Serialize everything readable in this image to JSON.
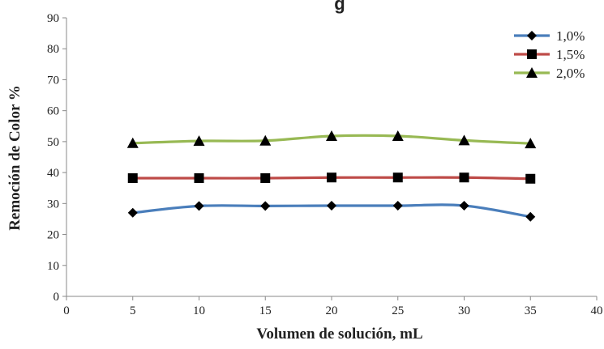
{
  "chart_data": {
    "type": "line",
    "title_partial": "g",
    "xlabel": "Volumen de solución, mL",
    "ylabel": "Remoción de Color %",
    "xlim": [
      0,
      40
    ],
    "ylim": [
      0,
      90
    ],
    "xticks": [
      0,
      5,
      10,
      15,
      20,
      25,
      30,
      35,
      40
    ],
    "yticks": [
      0,
      10,
      20,
      30,
      40,
      50,
      60,
      70,
      80,
      90
    ],
    "grid": false,
    "legend_position": "top-right",
    "x": [
      5,
      10,
      15,
      20,
      25,
      30,
      35
    ],
    "series": [
      {
        "name": "1,0%",
        "color": "#4a7ebb",
        "marker": "diamond",
        "values": [
          27,
          29.2,
          29.2,
          29.3,
          29.3,
          29.3,
          25.7
        ]
      },
      {
        "name": "1,5%",
        "color": "#be4b48",
        "marker": "square",
        "values": [
          38.2,
          38.2,
          38.2,
          38.4,
          38.4,
          38.4,
          38
        ]
      },
      {
        "name": "2,0%",
        "color": "#98b954",
        "marker": "triangle",
        "values": [
          49.5,
          50.2,
          50.3,
          51.8,
          51.8,
          50.4,
          49.4
        ]
      }
    ]
  }
}
